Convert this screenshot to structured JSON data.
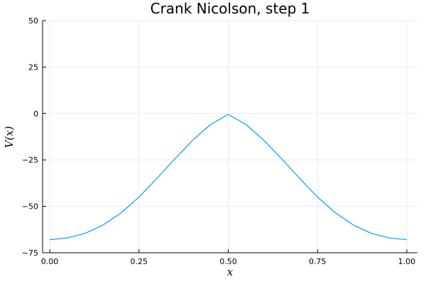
{
  "chart_data": {
    "type": "line",
    "title": "Crank Nicolson, step 1",
    "xlabel": "x",
    "ylabel": "V(x)",
    "xlim": [
      -0.02,
      1.03
    ],
    "ylim": [
      -75,
      50
    ],
    "x_ticks": [
      0.0,
      0.25,
      0.5,
      0.75,
      1.0
    ],
    "x_tick_labels": [
      "0.00",
      "0.25",
      "0.50",
      "0.75",
      "1.00"
    ],
    "y_ticks": [
      -75,
      -50,
      -25,
      0,
      25,
      50
    ],
    "y_tick_labels": [
      "−75",
      "−50",
      "−25",
      "0",
      "25",
      "50"
    ],
    "grid": true,
    "legend": "none",
    "series": [
      {
        "color": "#009af9",
        "x": [
          0.0,
          0.05,
          0.1,
          0.15,
          0.2,
          0.25,
          0.3,
          0.35,
          0.4,
          0.45,
          0.5,
          0.55,
          0.6,
          0.65,
          0.7,
          0.75,
          0.8,
          0.85,
          0.9,
          0.95,
          1.0
        ],
        "y": [
          -68.0,
          -67.0,
          -64.5,
          -60.0,
          -53.5,
          -45.0,
          -35.0,
          -24.5,
          -14.5,
          -6.0,
          -0.5,
          -6.0,
          -14.5,
          -24.5,
          -35.0,
          -45.0,
          -53.5,
          -60.0,
          -64.5,
          -67.0,
          -68.0
        ]
      }
    ]
  }
}
